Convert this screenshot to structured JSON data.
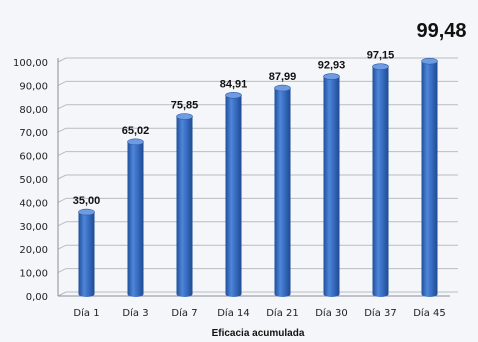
{
  "chart_data": {
    "type": "bar",
    "title": "",
    "xlabel": "Eficacia acumulada",
    "ylabel": "",
    "categories": [
      "Día 1",
      "Día 3",
      "Día 7",
      "Día 14",
      "Día 21",
      "Día 30",
      "Día 37",
      "Día 45"
    ],
    "values": [
      35.0,
      65.02,
      75.85,
      84.91,
      87.99,
      92.93,
      97.15,
      99.48
    ],
    "data_labels": [
      "35,00",
      "65,02",
      "75,85",
      "84,91",
      "87,99",
      "92,93",
      "97,15",
      "99,48"
    ],
    "ylim": [
      0,
      100
    ],
    "yticks": [
      "0,00",
      "10,00",
      "20,00",
      "30,00",
      "40,00",
      "50,00",
      "60,00",
      "70,00",
      "80,00",
      "90,00",
      "100,00"
    ],
    "grid": true,
    "legend": "none",
    "bar_color": "#3a6fc4"
  }
}
